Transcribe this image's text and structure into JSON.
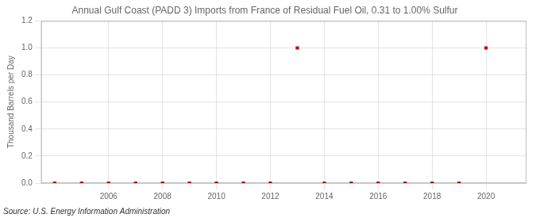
{
  "chart_data": {
    "type": "scatter",
    "title": "Annual Gulf Coast (PADD 3) Imports from France of Residual Fuel Oil, 0.31 to 1.00% Sulfur",
    "ylabel": "Thousand Barrels per Day",
    "annotations": [
      "Source: U.S. Energy Information Administration"
    ],
    "x": [
      2004,
      2005,
      2006,
      2007,
      2008,
      2009,
      2010,
      2011,
      2012,
      2013,
      2014,
      2015,
      2016,
      2017,
      2018,
      2019,
      2020
    ],
    "values": [
      0.0,
      0.0,
      0.0,
      0.0,
      0.0,
      0.0,
      0.0,
      0.0,
      0.0,
      1.0,
      0.0,
      0.0,
      0.0,
      0.0,
      0.0,
      0.0,
      1.0
    ],
    "color": "#cc0000",
    "marker": "square",
    "xlim": [
      2003.5,
      2021.5
    ],
    "xticks": [
      2006,
      2008,
      2010,
      2012,
      2014,
      2016,
      2018,
      2020
    ],
    "ylim": [
      0.0,
      1.2
    ],
    "yticks": [
      {
        "value": 0.0,
        "label": "0.0"
      },
      0.2,
      0.4,
      0.6,
      0.8,
      {
        "value": 1.0,
        "label": "1.0"
      },
      1.2
    ],
    "grid": true
  }
}
